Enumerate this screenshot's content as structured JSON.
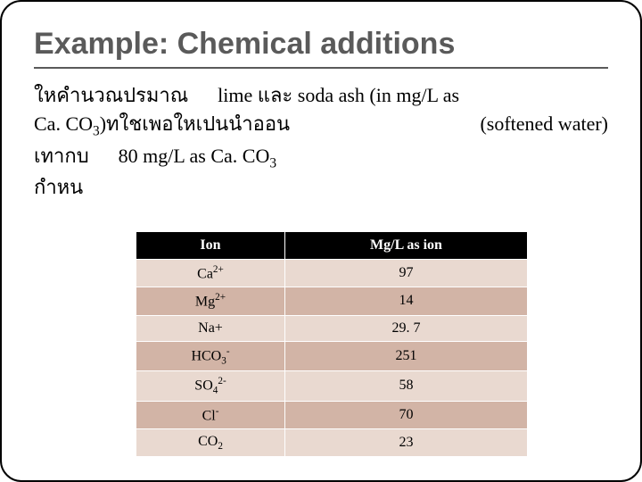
{
  "title": "Example: Chemical additions",
  "body": {
    "line1a": "ใหคำนวณปรมาณ",
    "line1b": "lime และ soda ash (in mg/L as",
    "line2a": "Ca. CO",
    "line2a_sub": "3",
    "line2b": ")ทใชเพอใหเปนนำออน",
    "line2c": "(softened water)",
    "line3a": "เทากบ",
    "line3b": "80 mg/L as Ca. CO",
    "line3b_sub": "3",
    "line4": "กำหน"
  },
  "table": {
    "headers": [
      "Ion",
      "Mg/L as ion"
    ],
    "rows": [
      {
        "ion_html": "Ca<sup>2+</sup>",
        "val": "97"
      },
      {
        "ion_html": "Mg<sup>2+</sup>",
        "val": "14"
      },
      {
        "ion_html": "Na+",
        "val": "29. 7"
      },
      {
        "ion_html": "HCO<sub>3</sub><sup>-</sup>",
        "val": "251"
      },
      {
        "ion_html": "SO<sub>4</sub><sup>2-</sup>",
        "val": "58"
      },
      {
        "ion_html": "Cl<sup>-</sup>",
        "val": "70"
      },
      {
        "ion_html": "CO<sub>2</sub>",
        "val": "23"
      }
    ],
    "header_bg": "#000000",
    "header_fg": "#ffffff",
    "row_bg": "#e9d9d0",
    "row_alt_bg": "#d2b4a6"
  }
}
